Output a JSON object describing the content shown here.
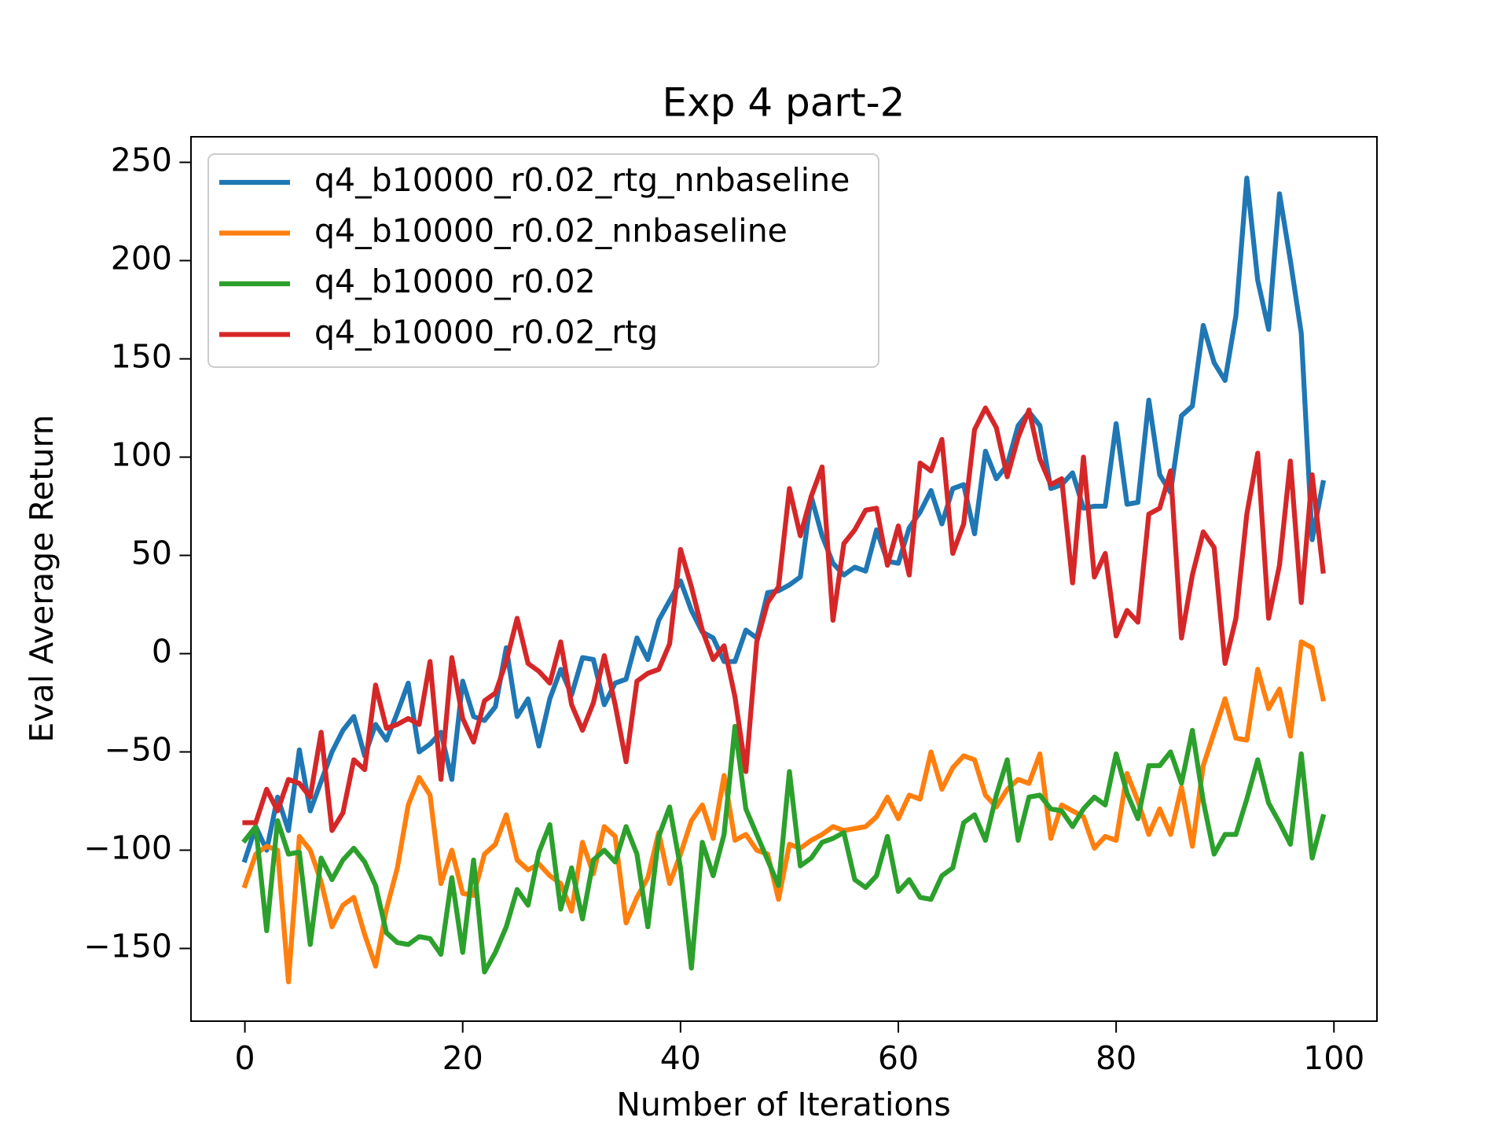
{
  "chart_data": {
    "type": "line",
    "title": "Exp 4 part-2",
    "x_label": "Number of Iterations",
    "y_label": "Eval Average Return",
    "x": [
      0,
      1,
      2,
      3,
      4,
      5,
      6,
      7,
      8,
      9,
      10,
      11,
      12,
      13,
      14,
      15,
      16,
      17,
      18,
      19,
      20,
      21,
      22,
      23,
      24,
      25,
      26,
      27,
      28,
      29,
      30,
      31,
      32,
      33,
      34,
      35,
      36,
      37,
      38,
      39,
      40,
      41,
      42,
      43,
      44,
      45,
      46,
      47,
      48,
      49,
      50,
      51,
      52,
      53,
      54,
      55,
      56,
      57,
      58,
      59,
      60,
      61,
      62,
      63,
      64,
      65,
      66,
      67,
      68,
      69,
      70,
      71,
      72,
      73,
      74,
      75,
      76,
      77,
      78,
      79,
      80,
      81,
      82,
      83,
      84,
      85,
      86,
      87,
      88,
      89,
      90,
      91,
      92,
      93,
      94,
      95,
      96,
      97,
      98,
      99
    ],
    "series": [
      {
        "name": "q4_b10000_r0.02_rtg_nnbaseline",
        "color": "#1f77b4",
        "values": [
          -105,
          -88,
          -100,
          -73,
          -90,
          -49,
          -80,
          -65,
          -50,
          -39,
          -32,
          -52,
          -36,
          -44,
          -30,
          -15,
          -50,
          -46,
          -40,
          -64,
          -14,
          -32,
          -34,
          -27,
          3,
          -32,
          -23,
          -47,
          -23,
          -8,
          -21,
          -2,
          -3,
          -26,
          -15,
          -13,
          8,
          -3,
          17,
          27,
          37,
          22,
          11,
          8,
          -4,
          -4,
          12,
          8,
          31,
          32,
          35,
          39,
          80,
          60,
          46,
          40,
          44,
          42,
          63,
          47,
          46,
          64,
          72,
          83,
          66,
          84,
          86,
          61,
          103,
          89,
          96,
          116,
          123,
          116,
          84,
          86,
          92,
          74,
          75,
          75,
          117,
          76,
          77,
          129,
          91,
          82,
          121,
          126,
          167,
          148,
          139,
          172,
          242,
          190,
          165,
          234,
          200,
          163,
          58,
          87
        ]
      },
      {
        "name": "q4_b10000_r0.02_nnbaseline",
        "color": "#ff7f0e",
        "values": [
          -118,
          -102,
          -98,
          -100,
          -167,
          -93,
          -100,
          -116,
          -139,
          -128,
          -124,
          -143,
          -159,
          -130,
          -109,
          -77,
          -63,
          -72,
          -117,
          -100,
          -122,
          -123,
          -102,
          -97,
          -82,
          -105,
          -110,
          -107,
          -113,
          -117,
          -131,
          -96,
          -112,
          -88,
          -93,
          -137,
          -124,
          -114,
          -91,
          -117,
          -102,
          -85,
          -77,
          -94,
          -62,
          -95,
          -92,
          -100,
          -102,
          -125,
          -97,
          -99,
          -95,
          -92,
          -88,
          -90,
          -89,
          -88,
          -83,
          -73,
          -84,
          -72,
          -74,
          -50,
          -69,
          -58,
          -52,
          -54,
          -72,
          -78,
          -69,
          -64,
          -66,
          -51,
          -94,
          -77,
          -80,
          -83,
          -99,
          -93,
          -95,
          -61,
          -75,
          -92,
          -79,
          -92,
          -68,
          -98,
          -57,
          -40,
          -23,
          -43,
          -44,
          -8,
          -28,
          -18,
          -42,
          6,
          3,
          -23
        ]
      },
      {
        "name": "q4_b10000_r0.02",
        "color": "#2ca02c",
        "values": [
          -95,
          -88,
          -141,
          -85,
          -102,
          -101,
          -148,
          -104,
          -115,
          -105,
          -99,
          -106,
          -118,
          -142,
          -147,
          -148,
          -144,
          -145,
          -153,
          -114,
          -152,
          -105,
          -162,
          -152,
          -139,
          -120,
          -128,
          -101,
          -87,
          -130,
          -109,
          -135,
          -105,
          -100,
          -106,
          -88,
          -102,
          -139,
          -93,
          -78,
          -109,
          -160,
          -96,
          -113,
          -92,
          -37,
          -79,
          -92,
          -105,
          -118,
          -60,
          -108,
          -104,
          -96,
          -94,
          -91,
          -115,
          -119,
          -113,
          -93,
          -121,
          -115,
          -124,
          -125,
          -113,
          -109,
          -86,
          -82,
          -95,
          -72,
          -54,
          -95,
          -73,
          -72,
          -79,
          -80,
          -88,
          -79,
          -73,
          -77,
          -51,
          -71,
          -84,
          -57,
          -57,
          -50,
          -66,
          -39,
          -75,
          -102,
          -92,
          -92,
          -74,
          -54,
          -76,
          -86,
          -97,
          -51,
          -104,
          -83
        ]
      },
      {
        "name": "q4_b10000_r0.02_rtg",
        "color": "#d62728",
        "values": [
          -86,
          -86,
          -69,
          -80,
          -64,
          -66,
          -73,
          -40,
          -90,
          -81,
          -54,
          -59,
          -16,
          -38,
          -36,
          -33,
          -36,
          -4,
          -64,
          -2,
          -33,
          -45,
          -24,
          -20,
          -4,
          18,
          -5,
          -9,
          -15,
          6,
          -26,
          -39,
          -25,
          -1,
          -26,
          -55,
          -14,
          -10,
          -8,
          5,
          53,
          34,
          12,
          -3,
          4,
          -22,
          -60,
          6,
          26,
          34,
          84,
          60,
          80,
          95,
          17,
          56,
          63,
          73,
          74,
          45,
          65,
          40,
          97,
          93,
          109,
          51,
          66,
          114,
          125,
          115,
          90,
          110,
          124,
          99,
          86,
          89,
          36,
          100,
          39,
          51,
          9,
          22,
          16,
          71,
          74,
          93,
          8,
          40,
          62,
          54,
          -5,
          18,
          71,
          102,
          18,
          45,
          98,
          26,
          91,
          42
        ]
      }
    ],
    "xlim": [
      -4.95,
      103.95
    ],
    "ylim": [
      -187,
      263
    ],
    "xticks": [
      0,
      20,
      40,
      60,
      80,
      100
    ],
    "yticks": [
      {
        "value": -150,
        "label": "−150"
      },
      {
        "value": -100,
        "label": "−100"
      },
      {
        "value": -50,
        "label": "−50"
      },
      0,
      50,
      100,
      150,
      200,
      250
    ],
    "legend": "upper left",
    "grid": false
  }
}
